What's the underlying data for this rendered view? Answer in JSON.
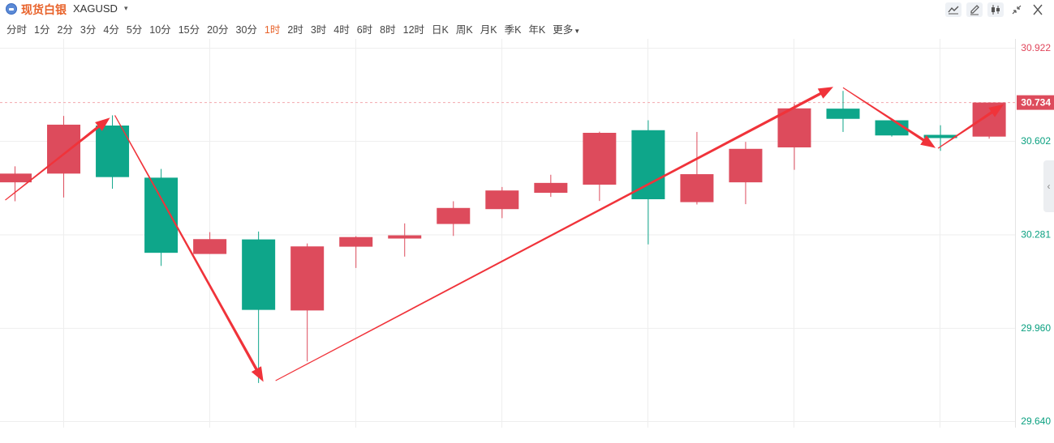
{
  "header": {
    "title_cn": "现货白银",
    "symbol": "XAGUSD",
    "caret": "▾",
    "tools": [
      "line-tool-icon",
      "pen-icon",
      "candle-type-icon",
      "shrink-icon",
      "close-icon"
    ]
  },
  "periods": [
    {
      "label": "分时"
    },
    {
      "label": "1分"
    },
    {
      "label": "2分"
    },
    {
      "label": "3分"
    },
    {
      "label": "4分"
    },
    {
      "label": "5分"
    },
    {
      "label": "10分"
    },
    {
      "label": "15分"
    },
    {
      "label": "20分"
    },
    {
      "label": "30分"
    },
    {
      "label": "1时",
      "active": true
    },
    {
      "label": "2时"
    },
    {
      "label": "3时"
    },
    {
      "label": "4时"
    },
    {
      "label": "6时"
    },
    {
      "label": "8时"
    },
    {
      "label": "12时"
    },
    {
      "label": "日K"
    },
    {
      "label": "周K"
    },
    {
      "label": "月K"
    },
    {
      "label": "季K"
    },
    {
      "label": "年K"
    },
    {
      "label": "更多",
      "dropdown": true
    }
  ],
  "chart_data": {
    "type": "candlestick",
    "ylim": [
      29.64,
      30.922
    ],
    "y_ticks": [
      {
        "value": 30.922,
        "label": "30.922",
        "color": "#e0455a"
      },
      {
        "value": 30.602,
        "label": "30.602",
        "color": "#0aa080"
      },
      {
        "value": 30.281,
        "label": "30.281",
        "color": "#0aa080"
      },
      {
        "value": 29.96,
        "label": "29.960",
        "color": "#0aa080"
      },
      {
        "value": 29.64,
        "label": "29.640",
        "color": "#0aa080"
      }
    ],
    "current_price": {
      "value": 30.734,
      "label": "30.734"
    },
    "up_color": "#dd4b5c",
    "down_color": "#0ea68a",
    "arrow_color": "#f0333a",
    "candles": [
      {
        "open": 30.46,
        "close": 30.49,
        "high": 30.515,
        "low": 30.395
      },
      {
        "open": 30.49,
        "close": 30.658,
        "high": 30.688,
        "low": 30.408
      },
      {
        "open": 30.655,
        "close": 30.478,
        "high": 30.69,
        "low": 30.438
      },
      {
        "open": 30.476,
        "close": 30.218,
        "high": 30.506,
        "low": 30.173
      },
      {
        "open": 30.214,
        "close": 30.265,
        "high": 30.289,
        "low": 30.214
      },
      {
        "open": 30.264,
        "close": 30.022,
        "high": 30.291,
        "low": 29.771
      },
      {
        "open": 30.02,
        "close": 30.24,
        "high": 30.25,
        "low": 29.845
      },
      {
        "open": 30.239,
        "close": 30.272,
        "high": 30.275,
        "low": 30.166
      },
      {
        "open": 30.267,
        "close": 30.278,
        "high": 30.319,
        "low": 30.205
      },
      {
        "open": 30.317,
        "close": 30.372,
        "high": 30.395,
        "low": 30.276
      },
      {
        "open": 30.368,
        "close": 30.432,
        "high": 30.444,
        "low": 30.337
      },
      {
        "open": 30.424,
        "close": 30.458,
        "high": 30.486,
        "low": 30.41
      },
      {
        "open": 30.452,
        "close": 30.63,
        "high": 30.634,
        "low": 30.396
      },
      {
        "open": 30.639,
        "close": 30.402,
        "high": 30.673,
        "low": 30.247
      },
      {
        "open": 30.392,
        "close": 30.488,
        "high": 30.633,
        "low": 30.384
      },
      {
        "open": 30.46,
        "close": 30.575,
        "high": 30.599,
        "low": 30.385
      },
      {
        "open": 30.58,
        "close": 30.714,
        "high": 30.731,
        "low": 30.503
      },
      {
        "open": 30.713,
        "close": 30.678,
        "high": 30.774,
        "low": 30.633
      },
      {
        "open": 30.673,
        "close": 30.621,
        "high": 30.676,
        "low": 30.617
      },
      {
        "open": 30.623,
        "close": 30.612,
        "high": 30.656,
        "low": 30.568
      },
      {
        "open": 30.617,
        "close": 30.734,
        "high": 30.734,
        "low": 30.61
      }
    ],
    "annotations": [
      {
        "kind": "arrow",
        "from": [
          -0.2,
          30.399
        ],
        "to": [
          1.95,
          30.682
        ]
      },
      {
        "kind": "arrow",
        "from": [
          2.05,
          30.69
        ],
        "to": [
          5.1,
          29.775
        ]
      },
      {
        "kind": "arrow",
        "from": [
          5.35,
          29.779
        ],
        "to": [
          16.8,
          30.788
        ]
      },
      {
        "kind": "arrow",
        "from": [
          17.0,
          30.785
        ],
        "to": [
          18.9,
          30.578
        ]
      },
      {
        "kind": "arrow",
        "from": [
          18.95,
          30.577
        ],
        "to": [
          20.3,
          30.728
        ]
      }
    ]
  }
}
